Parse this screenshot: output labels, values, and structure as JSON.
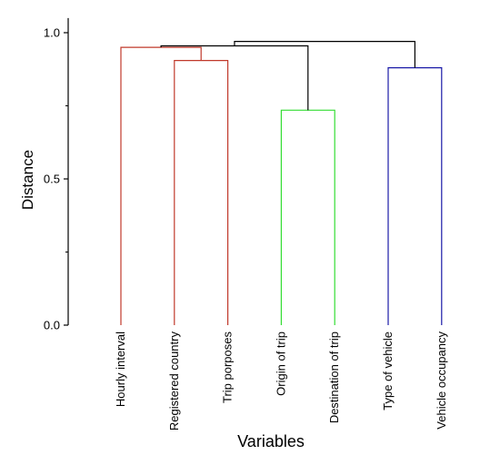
{
  "chart_data": {
    "type": "dendrogram",
    "xlabel": "Variables",
    "ylabel": "Distance",
    "ylim": [
      0,
      1.05
    ],
    "yticks": [
      0.0,
      0.5,
      1.0
    ],
    "ytick_labels": [
      "0.0",
      "0.5",
      "1.0"
    ],
    "leaves": [
      "Hourly interval",
      "Registered country",
      "Trip porposes",
      "Origin of trip",
      "Destination of trip",
      "Type of vehicle",
      "Vehicle occupancy"
    ],
    "clusters": [
      {
        "color": "#c0392b",
        "leaves": [
          0,
          1,
          2
        ]
      },
      {
        "color": "#33dd33",
        "leaves": [
          3,
          4
        ]
      },
      {
        "color": "#1a1aa8",
        "leaves": [
          5,
          6
        ]
      }
    ],
    "merges": [
      {
        "left": "L1",
        "right": "L2",
        "height": 0.905,
        "color": "#c0392b"
      },
      {
        "left": "L0",
        "right": "M0",
        "height": 0.95,
        "color": "#c0392b"
      },
      {
        "left": "L3",
        "right": "L4",
        "height": 0.735,
        "color": "#33dd33"
      },
      {
        "left": "L5",
        "right": "L6",
        "height": 0.88,
        "color": "#1a1aa8"
      },
      {
        "left": "M1",
        "right": "M2",
        "height": 0.955,
        "color": "#000000"
      },
      {
        "left": "M4",
        "right": "M3",
        "height": 0.97,
        "color": "#000000"
      }
    ]
  }
}
